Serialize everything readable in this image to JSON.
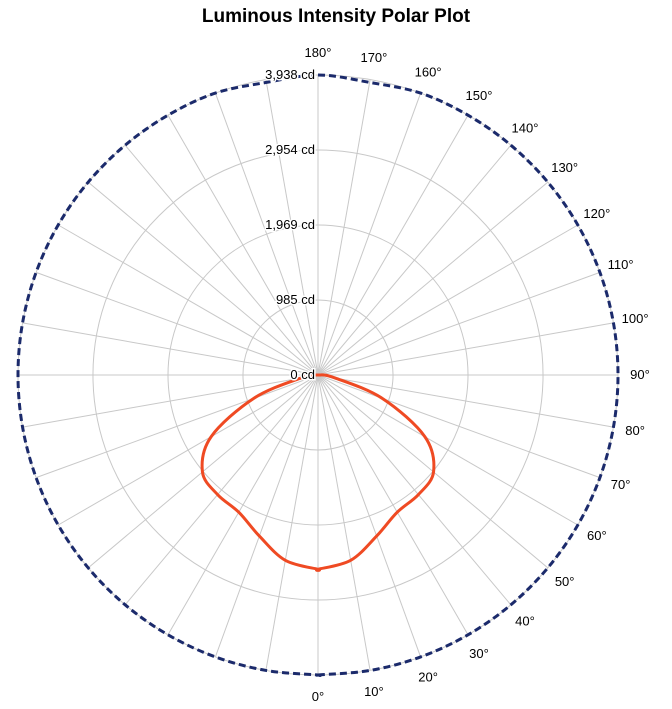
{
  "chart_data": {
    "type": "polar",
    "title": "Luminous Intensity Polar Plot",
    "radial_ticks": [
      "0 cd",
      "985 cd",
      "1,969 cd",
      "2,954 cd",
      "3,938 cd"
    ],
    "radial_values": [
      0,
      985,
      1969,
      2954,
      3938
    ],
    "r_max": 3938,
    "angle_ticks": [
      "0°",
      "10°",
      "20°",
      "30°",
      "40°",
      "50°",
      "60°",
      "70°",
      "80°",
      "90°",
      "100°",
      "110°",
      "120°",
      "130°",
      "140°",
      "150°",
      "160°",
      "170°",
      "180°"
    ],
    "angle_values": [
      0,
      10,
      20,
      30,
      40,
      50,
      60,
      70,
      80,
      90,
      100,
      110,
      120,
      130,
      140,
      150,
      160,
      170,
      180
    ],
    "grid": true,
    "series": [
      {
        "color": "#ef4a23",
        "dash": "solid",
        "angles": [
          0,
          10,
          20,
          30,
          40,
          50,
          60,
          70,
          80,
          90
        ],
        "values": [
          2550,
          2470,
          2250,
          2080,
          2050,
          1980,
          1620,
          900,
          230,
          0
        ]
      },
      {
        "color": "#1b2a6b",
        "dash": "dashed",
        "angles": [
          0,
          10,
          20,
          30,
          40,
          50,
          60,
          70,
          80,
          90,
          100,
          110,
          120,
          130,
          140,
          150,
          160,
          170,
          180
        ],
        "values": [
          3938,
          3938,
          3938,
          3938,
          3938,
          3938,
          3938,
          3938,
          3938,
          3938,
          3938,
          3938,
          3938,
          3938,
          3938,
          3938,
          3938,
          3900,
          3938
        ]
      }
    ]
  }
}
